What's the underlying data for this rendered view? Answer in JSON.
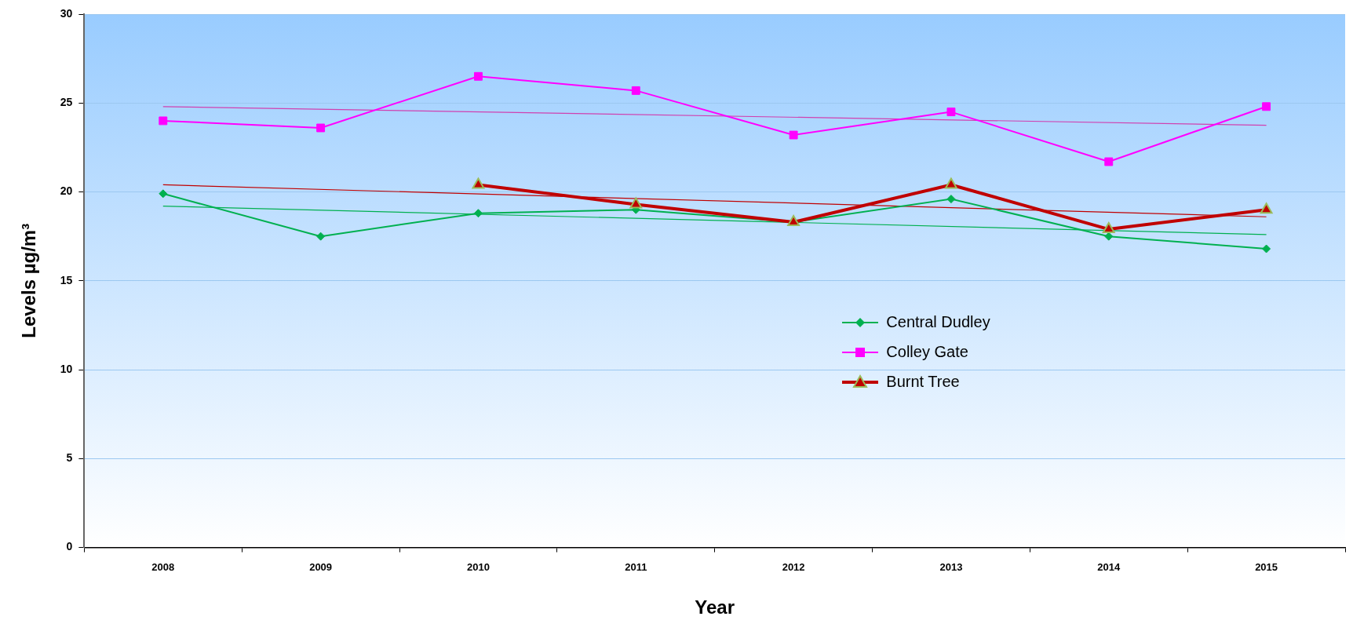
{
  "chart_data": {
    "type": "line",
    "xlabel": "Year",
    "ylabel": "Levels µg/m³",
    "categories": [
      "2008",
      "2009",
      "2010",
      "2011",
      "2012",
      "2013",
      "2014",
      "2015"
    ],
    "ylim": [
      0,
      30
    ],
    "yticks": [
      0,
      5,
      10,
      15,
      20,
      25,
      30
    ],
    "grid": "y",
    "legend": "right",
    "series": [
      {
        "name": "Central Dudley",
        "color": "#00b050",
        "marker": "diamond",
        "values": [
          19.9,
          17.5,
          18.8,
          19.0,
          18.3,
          19.6,
          17.5,
          16.8
        ]
      },
      {
        "name": "Colley Gate",
        "color": "#ff00ff",
        "marker": "square",
        "values": [
          24.0,
          23.6,
          26.5,
          25.7,
          23.2,
          24.5,
          21.7,
          24.8
        ]
      },
      {
        "name": "Burnt Tree",
        "color": "#c00000",
        "marker": "triangle",
        "values": [
          null,
          null,
          20.4,
          19.3,
          18.3,
          20.4,
          17.9,
          19.0
        ]
      },
      {
        "type": "line",
        "color": "#00b050",
        "marker": "none",
        "values": [
          19.2,
          null,
          null,
          null,
          null,
          null,
          null,
          17.6
        ]
      },
      {
        "type": "line",
        "color": "#d040b0",
        "marker": "none",
        "values": [
          24.8,
          null,
          null,
          null,
          null,
          null,
          null,
          23.75
        ]
      },
      {
        "type": "line",
        "color": "#c00000",
        "marker": "none",
        "values": [
          20.4,
          null,
          null,
          null,
          null,
          null,
          null,
          18.6
        ]
      }
    ]
  }
}
